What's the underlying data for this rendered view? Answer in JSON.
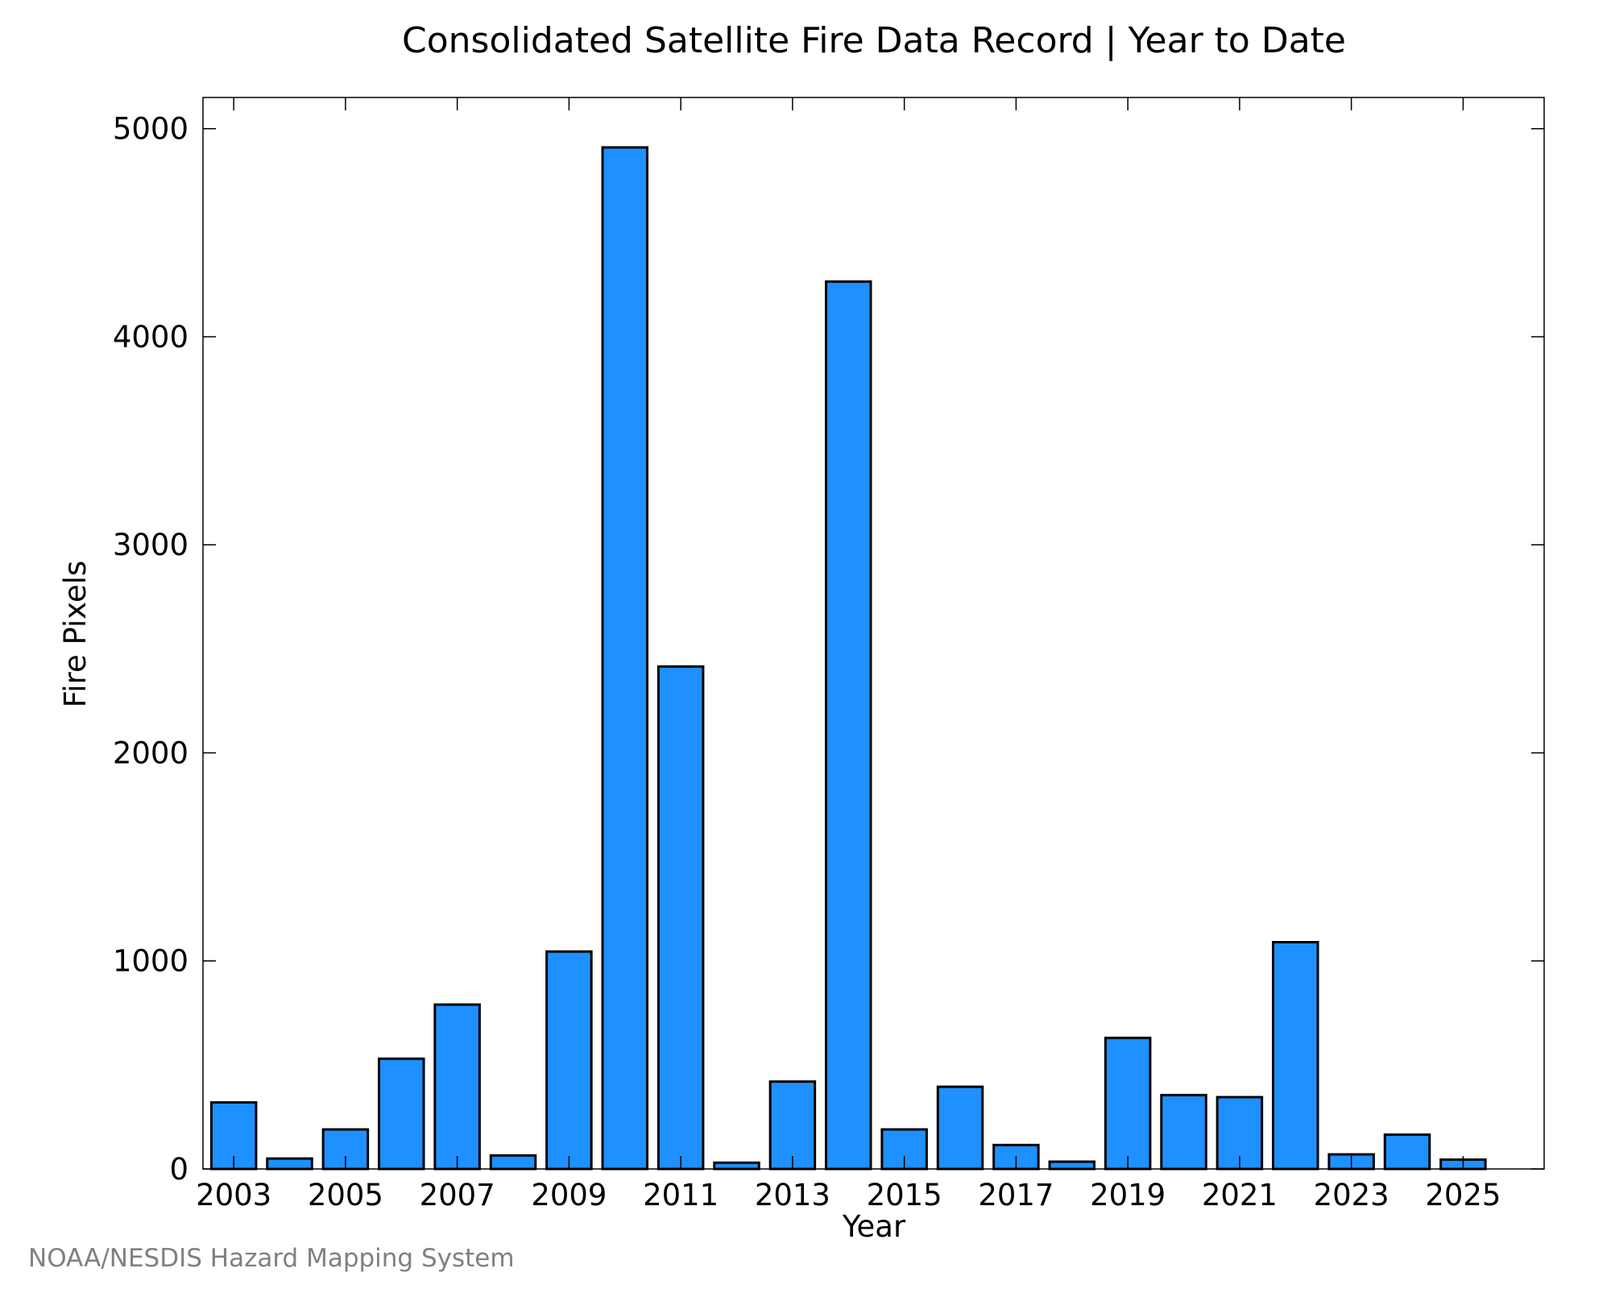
{
  "chart_data": {
    "type": "bar",
    "title": "Consolidated Satellite Fire Data Record | Year to Date",
    "xlabel": "Year",
    "ylabel": "Fire Pixels",
    "categories": [
      "2003",
      "2004",
      "2005",
      "2006",
      "2007",
      "2008",
      "2009",
      "2010",
      "2011",
      "2012",
      "2013",
      "2014",
      "2015",
      "2016",
      "2017",
      "2018",
      "2019",
      "2020",
      "2021",
      "2022",
      "2023",
      "2024",
      "2025"
    ],
    "x_tick_labels": [
      "2003",
      "2005",
      "2007",
      "2009",
      "2011",
      "2013",
      "2015",
      "2017",
      "2019",
      "2021",
      "2023",
      "2025"
    ],
    "y_tick_labels": [
      "0",
      "1000",
      "2000",
      "3000",
      "4000",
      "5000"
    ],
    "values": [
      320,
      50,
      190,
      530,
      790,
      65,
      1045,
      4910,
      2415,
      30,
      420,
      4265,
      190,
      395,
      115,
      35,
      630,
      355,
      345,
      1090,
      70,
      165,
      45
    ],
    "ylim": [
      0,
      5150
    ],
    "grid": false,
    "bar_color": "#1e90ff",
    "bar_edge_color": "#000000"
  },
  "credit": "NOAA/NESDIS Hazard Mapping System"
}
